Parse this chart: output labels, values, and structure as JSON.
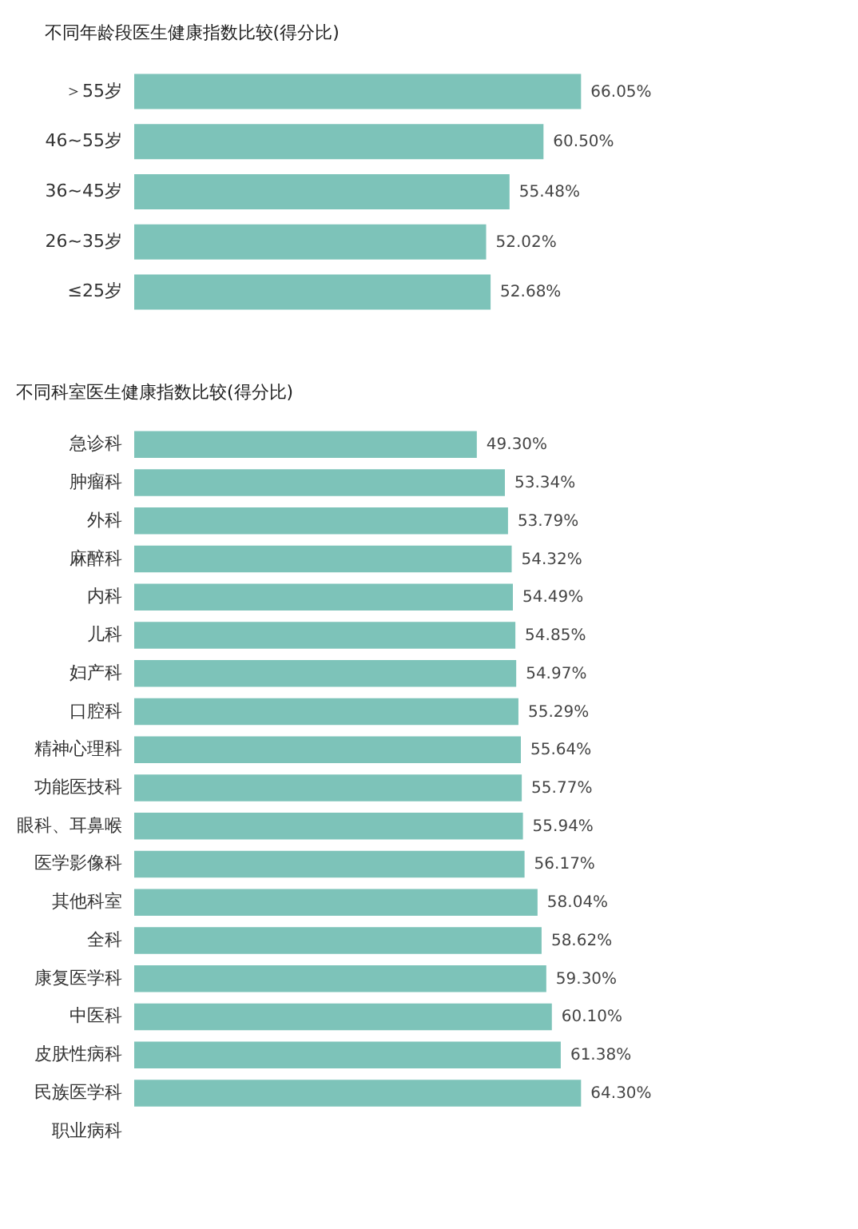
{
  "chart_data": [
    {
      "type": "bar",
      "orientation": "horizontal",
      "title": "不同年龄段医生健康指数比较(得分比)",
      "categories": [
        "＞55岁",
        "46~55岁",
        "36~45岁",
        "26~35岁",
        "≤25岁"
      ],
      "values": [
        66.05,
        60.5,
        55.48,
        52.02,
        52.68
      ],
      "value_labels": [
        "66.05%",
        "60.50%",
        "55.48%",
        "52.02%",
        "52.68%"
      ],
      "color": "#7dc3b9",
      "tick_labels": "y",
      "grid": false
    },
    {
      "type": "bar",
      "orientation": "horizontal",
      "title": "不同科室医生健康指数比较(得分比)",
      "categories": [
        "急诊科",
        "肿瘤科",
        "外科",
        "麻醉科",
        "内科",
        "儿科",
        "妇产科",
        "口腔科",
        "精神心理科",
        "功能医技科",
        "眼科、耳鼻喉",
        "医学影像科",
        "其他科室",
        "全科",
        "康复医学科",
        "中医科",
        "皮肤性病科",
        "民族医学科",
        "职业病科"
      ],
      "values": [
        49.3,
        53.34,
        53.79,
        54.32,
        54.49,
        54.85,
        54.97,
        55.29,
        55.64,
        55.77,
        55.94,
        56.17,
        58.04,
        58.62,
        59.3,
        60.1,
        61.38,
        64.3,
        null
      ],
      "value_labels": [
        "49.30%",
        "53.34%",
        "53.79%",
        "54.32%",
        "54.49%",
        "54.85%",
        "54.97%",
        "55.29%",
        "55.64%",
        "55.77%",
        "55.94%",
        "56.17%",
        "58.04%",
        "58.62%",
        "59.30%",
        "60.10%",
        "61.38%",
        "64.30%",
        null
      ],
      "color": "#7dc3b9",
      "tick_labels": "y",
      "grid": false
    }
  ]
}
